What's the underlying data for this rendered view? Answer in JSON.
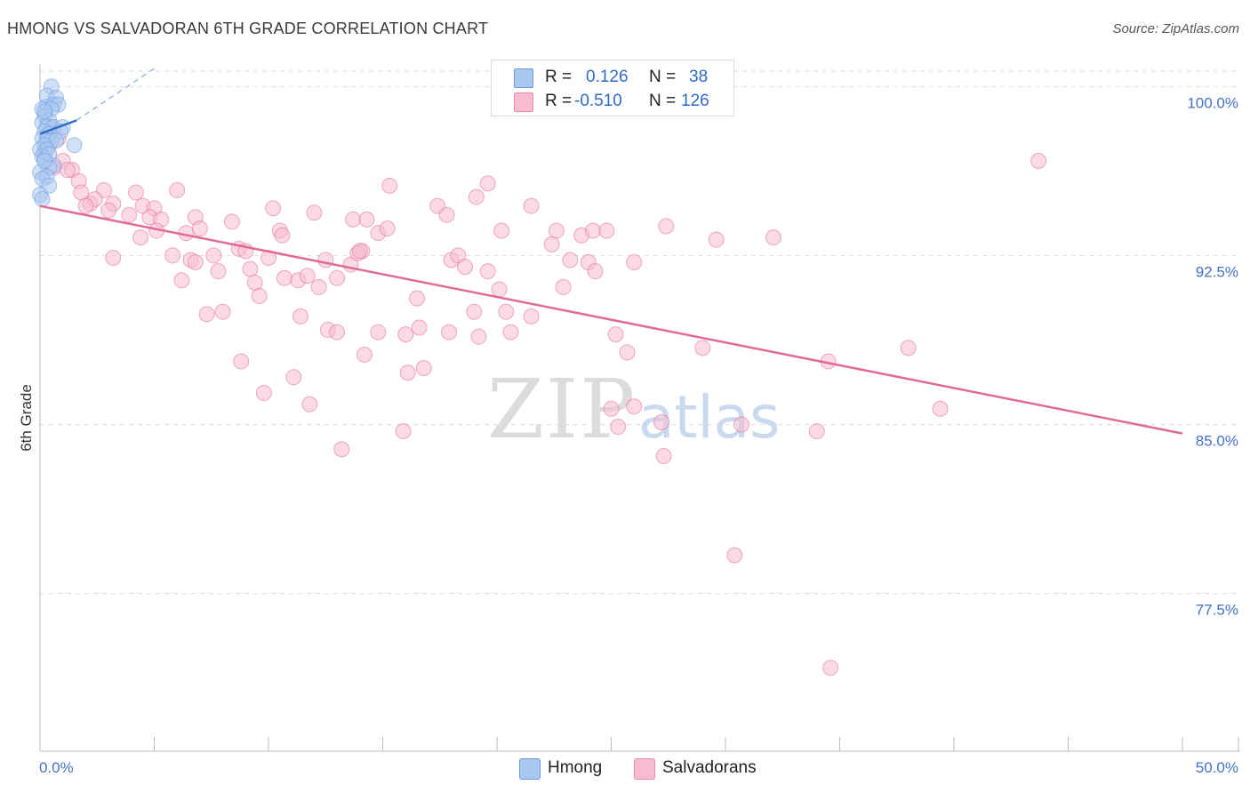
{
  "title": "HMONG VS SALVADORAN 6TH GRADE CORRELATION CHART",
  "source": "Source: ZipAtlas.com",
  "watermark": {
    "zip": "ZIP",
    "atlas": "atlas"
  },
  "legend": {
    "rows": [
      {
        "r_label": "R =",
        "r_value": "0.126",
        "n_label": "N =",
        "n_value": "38",
        "color": "#a9c8f0",
        "border": "#6a9be0"
      },
      {
        "r_label": "R =",
        "r_value": "-0.510",
        "n_label": "N =",
        "n_value": "126",
        "color": "#f7bcd0",
        "border": "#e98aac"
      }
    ]
  },
  "bottom_legend": [
    {
      "label": "Hmong",
      "color": "#a9c8f0",
      "border": "#6a9be0"
    },
    {
      "label": "Salvadorans",
      "color": "#f7bcd0",
      "border": "#e98aac"
    }
  ],
  "chart_data": {
    "type": "scatter",
    "title": "HMONG VS SALVADORAN 6TH GRADE CORRELATION CHART",
    "xlabel": "",
    "ylabel": "6th Grade",
    "xlim": [
      0,
      50
    ],
    "ylim": [
      70.5,
      101
    ],
    "x_tick_labels": [
      "0.0%",
      "50.0%"
    ],
    "y_ticks": [
      77.5,
      85.0,
      92.5,
      100.0
    ],
    "y_tick_labels": [
      "77.5%",
      "85.0%",
      "92.5%",
      "100.0%"
    ],
    "grid": "horizontal dashed",
    "series": [
      {
        "name": "Hmong",
        "color": "#6a9be0",
        "fill": "#a9c8f0",
        "trend": {
          "x0": 0.0,
          "y0": 97.9,
          "x1": 1.6,
          "y1": 98.5,
          "dashed_to_x": 5.0,
          "dashed_to_y": 100.8
        },
        "points": [
          [
            0.5,
            100.0
          ],
          [
            0.3,
            99.6
          ],
          [
            0.7,
            99.5
          ],
          [
            0.3,
            99.1
          ],
          [
            0.6,
            99.2
          ],
          [
            0.8,
            99.2
          ],
          [
            0.1,
            99.0
          ],
          [
            0.5,
            99.0
          ],
          [
            0.2,
            98.7
          ],
          [
            0.4,
            98.5
          ],
          [
            0.1,
            98.4
          ],
          [
            0.3,
            98.2
          ],
          [
            0.6,
            98.2
          ],
          [
            1.0,
            98.2
          ],
          [
            0.2,
            98.0
          ],
          [
            0.4,
            97.9
          ],
          [
            0.9,
            98.0
          ],
          [
            0.1,
            97.7
          ],
          [
            0.3,
            97.6
          ],
          [
            0.5,
            97.6
          ],
          [
            0.7,
            97.6
          ],
          [
            0.2,
            97.4
          ],
          [
            1.5,
            97.4
          ],
          [
            0.0,
            97.2
          ],
          [
            0.3,
            97.2
          ],
          [
            0.1,
            96.9
          ],
          [
            0.2,
            96.8
          ],
          [
            0.6,
            96.5
          ],
          [
            0.4,
            96.4
          ],
          [
            0.0,
            96.2
          ],
          [
            0.3,
            96.0
          ],
          [
            0.1,
            95.9
          ],
          [
            0.4,
            95.6
          ],
          [
            0.0,
            95.2
          ],
          [
            0.1,
            95.0
          ],
          [
            0.2,
            98.9
          ],
          [
            0.4,
            97.0
          ],
          [
            0.2,
            96.7
          ]
        ]
      },
      {
        "name": "Salvadorans",
        "color": "#e06b96",
        "fill": "#f7bcd0",
        "trend": {
          "x0": 0.0,
          "y0": 94.7,
          "x1": 50.0,
          "y1": 84.6
        },
        "points": [
          [
            0.5,
            98.2
          ],
          [
            0.8,
            97.7
          ],
          [
            0.4,
            97.4
          ],
          [
            0.2,
            97.1
          ],
          [
            1.0,
            96.7
          ],
          [
            0.6,
            96.4
          ],
          [
            1.4,
            96.3
          ],
          [
            1.2,
            96.3
          ],
          [
            1.7,
            95.8
          ],
          [
            1.8,
            95.3
          ],
          [
            2.8,
            95.4
          ],
          [
            4.2,
            95.3
          ],
          [
            6.0,
            95.4
          ],
          [
            2.2,
            94.8
          ],
          [
            2.4,
            95.0
          ],
          [
            3.2,
            94.8
          ],
          [
            4.5,
            94.7
          ],
          [
            5.0,
            94.6
          ],
          [
            2.0,
            94.7
          ],
          [
            3.0,
            94.5
          ],
          [
            3.9,
            94.3
          ],
          [
            4.8,
            94.2
          ],
          [
            5.3,
            94.1
          ],
          [
            6.8,
            94.2
          ],
          [
            8.4,
            94.0
          ],
          [
            10.2,
            94.6
          ],
          [
            12.0,
            94.4
          ],
          [
            13.7,
            94.1
          ],
          [
            14.3,
            94.1
          ],
          [
            15.3,
            95.6
          ],
          [
            17.4,
            94.7
          ],
          [
            17.8,
            94.3
          ],
          [
            19.1,
            95.1
          ],
          [
            19.6,
            95.7
          ],
          [
            21.5,
            94.7
          ],
          [
            4.4,
            93.3
          ],
          [
            5.1,
            93.6
          ],
          [
            6.4,
            93.5
          ],
          [
            7.0,
            93.7
          ],
          [
            10.5,
            93.6
          ],
          [
            10.6,
            93.4
          ],
          [
            14.8,
            93.5
          ],
          [
            15.2,
            93.7
          ],
          [
            20.2,
            93.6
          ],
          [
            22.6,
            93.6
          ],
          [
            22.4,
            93.0
          ],
          [
            23.7,
            93.4
          ],
          [
            24.2,
            93.6
          ],
          [
            24.8,
            93.6
          ],
          [
            27.4,
            93.8
          ],
          [
            29.6,
            93.2
          ],
          [
            32.1,
            93.3
          ],
          [
            3.2,
            92.4
          ],
          [
            5.8,
            92.5
          ],
          [
            6.6,
            92.3
          ],
          [
            7.6,
            92.5
          ],
          [
            8.7,
            92.8
          ],
          [
            9.0,
            92.7
          ],
          [
            10.0,
            92.4
          ],
          [
            12.5,
            92.3
          ],
          [
            13.6,
            92.1
          ],
          [
            14.1,
            92.7
          ],
          [
            13.9,
            92.6
          ],
          [
            18.0,
            92.3
          ],
          [
            18.3,
            92.5
          ],
          [
            23.2,
            92.3
          ],
          [
            24.0,
            92.2
          ],
          [
            26.0,
            92.2
          ],
          [
            6.2,
            91.4
          ],
          [
            6.8,
            92.2
          ],
          [
            7.8,
            91.8
          ],
          [
            9.2,
            91.9
          ],
          [
            9.4,
            91.3
          ],
          [
            10.7,
            91.5
          ],
          [
            11.3,
            91.4
          ],
          [
            11.7,
            91.6
          ],
          [
            12.2,
            91.1
          ],
          [
            13.0,
            91.5
          ],
          [
            14.0,
            92.7
          ],
          [
            18.6,
            92.0
          ],
          [
            19.6,
            91.8
          ],
          [
            20.1,
            91.0
          ],
          [
            22.9,
            91.1
          ],
          [
            24.3,
            91.8
          ],
          [
            9.6,
            90.7
          ],
          [
            16.5,
            90.6
          ],
          [
            7.3,
            89.9
          ],
          [
            8.0,
            90.0
          ],
          [
            11.4,
            89.8
          ],
          [
            12.6,
            89.2
          ],
          [
            13.0,
            89.1
          ],
          [
            14.8,
            89.1
          ],
          [
            16.0,
            89.0
          ],
          [
            16.6,
            89.3
          ],
          [
            17.9,
            89.1
          ],
          [
            19.0,
            90.0
          ],
          [
            19.2,
            88.9
          ],
          [
            20.4,
            90.0
          ],
          [
            20.6,
            89.1
          ],
          [
            21.5,
            89.8
          ],
          [
            25.2,
            89.0
          ],
          [
            25.7,
            88.2
          ],
          [
            29.0,
            88.4
          ],
          [
            34.5,
            87.8
          ],
          [
            38.0,
            88.4
          ],
          [
            8.8,
            87.8
          ],
          [
            11.1,
            87.1
          ],
          [
            14.2,
            88.1
          ],
          [
            16.1,
            87.3
          ],
          [
            16.8,
            87.5
          ],
          [
            9.8,
            86.4
          ],
          [
            11.8,
            85.9
          ],
          [
            25.0,
            85.7
          ],
          [
            26.0,
            85.8
          ],
          [
            25.3,
            84.9
          ],
          [
            27.2,
            85.1
          ],
          [
            30.7,
            85.0
          ],
          [
            34.0,
            84.7
          ],
          [
            39.4,
            85.7
          ],
          [
            13.2,
            83.9
          ],
          [
            15.9,
            84.7
          ],
          [
            27.3,
            83.6
          ],
          [
            30.4,
            79.2
          ],
          [
            34.6,
            74.2
          ],
          [
            43.7,
            96.7
          ]
        ]
      }
    ]
  }
}
